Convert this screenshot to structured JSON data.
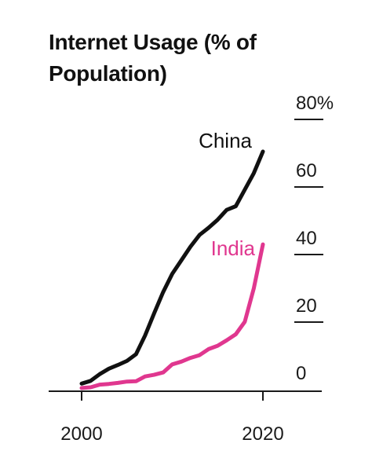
{
  "chart_data": {
    "type": "line",
    "title": "Internet Usage (% of Population)",
    "xlabel": "",
    "ylabel": "",
    "x": [
      2000,
      2001,
      2002,
      2003,
      2004,
      2005,
      2006,
      2007,
      2008,
      2009,
      2010,
      2011,
      2012,
      2013,
      2014,
      2015,
      2016,
      2017,
      2018,
      2019,
      2020
    ],
    "xlim": [
      2000,
      2020
    ],
    "ylim": [
      0,
      80
    ],
    "x_ticks": [
      "2000",
      "2020"
    ],
    "y_ticks": [
      "0",
      "20",
      "40",
      "60",
      "80%"
    ],
    "y_tick_values": [
      0,
      20,
      40,
      60,
      80
    ],
    "y_axis_side": "right",
    "grid": false,
    "legend": "direct labels",
    "series": [
      {
        "name": "China",
        "color": "#111111",
        "values": [
          1.8,
          2.6,
          4.6,
          6.2,
          7.3,
          8.5,
          10.5,
          16,
          22.6,
          28.9,
          34.3,
          38.3,
          42.3,
          45.8,
          47.9,
          50.3,
          53.2,
          54.3,
          59.2,
          64.1,
          70.5
        ]
      },
      {
        "name": "India",
        "color": "#e0378f",
        "values": [
          0.5,
          0.7,
          1.5,
          1.7,
          2.0,
          2.4,
          2.5,
          3.9,
          4.4,
          5.1,
          7.5,
          8.3,
          9.4,
          10.2,
          12.0,
          13.0,
          14.6,
          16.4,
          20.1,
          30.0,
          43.0
        ]
      }
    ]
  }
}
